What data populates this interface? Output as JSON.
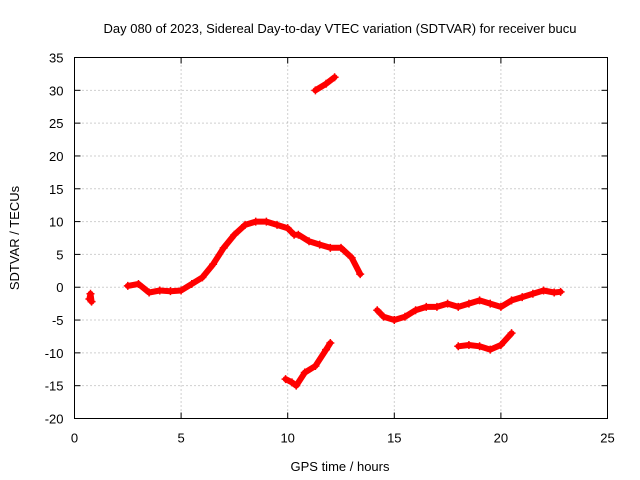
{
  "chart_data": {
    "type": "scatter",
    "title": "Day 080 of 2023, Sidereal Day-to-day VTEC variation (SDTVAR) for receiver bucu",
    "xlabel": "GPS time / hours",
    "ylabel": "SDTVAR / TECUs",
    "xlim": [
      0,
      25
    ],
    "ylim": [
      -20,
      35
    ],
    "xticks": [
      0,
      5,
      10,
      15,
      20,
      25
    ],
    "yticks": [
      -20,
      -15,
      -10,
      -5,
      0,
      5,
      10,
      15,
      20,
      25,
      30,
      35
    ],
    "grid": true,
    "legend": "none",
    "series": [
      {
        "name": "SDTVAR",
        "color": "#ff0000",
        "segments": [
          [
            [
              0.7,
              -1.8
            ],
            [
              0.75,
              -1.0
            ],
            [
              0.8,
              -2.2
            ]
          ],
          [
            [
              2.5,
              0.2
            ],
            [
              3.0,
              0.5
            ],
            [
              3.5,
              -0.8
            ],
            [
              4.0,
              -0.5
            ],
            [
              4.5,
              -0.6
            ],
            [
              5.0,
              -0.5
            ],
            [
              5.5,
              0.5
            ],
            [
              6.0,
              1.5
            ],
            [
              6.5,
              3.5
            ],
            [
              7.0,
              6.0
            ],
            [
              7.5,
              8.0
            ],
            [
              8.0,
              9.5
            ],
            [
              8.5,
              10.0
            ],
            [
              9.0,
              10.0
            ],
            [
              9.5,
              9.5
            ],
            [
              10.0,
              9.0
            ],
            [
              10.3,
              8.0
            ],
            [
              10.5,
              8.0
            ],
            [
              11.0,
              7.0
            ],
            [
              11.5,
              6.5
            ],
            [
              12.0,
              6.0
            ],
            [
              12.5,
              6.0
            ],
            [
              13.0,
              4.5
            ],
            [
              13.4,
              2.0
            ]
          ],
          [
            [
              11.3,
              30.0
            ],
            [
              11.8,
              31.0
            ],
            [
              12.2,
              32.0
            ]
          ],
          [
            [
              9.9,
              -14.0
            ],
            [
              10.2,
              -14.5
            ],
            [
              10.4,
              -15.0
            ],
            [
              10.8,
              -13.0
            ],
            [
              11.3,
              -12.0
            ],
            [
              11.8,
              -9.5
            ],
            [
              12.0,
              -8.5
            ]
          ],
          [
            [
              14.2,
              -3.5
            ],
            [
              14.5,
              -4.5
            ],
            [
              15.0,
              -5.0
            ],
            [
              15.5,
              -4.5
            ],
            [
              16.0,
              -3.5
            ],
            [
              16.5,
              -3.0
            ],
            [
              17.0,
              -3.0
            ],
            [
              17.5,
              -2.5
            ],
            [
              18.0,
              -3.0
            ],
            [
              18.5,
              -2.5
            ],
            [
              19.0,
              -2.0
            ],
            [
              19.5,
              -2.5
            ],
            [
              20.0,
              -3.0
            ],
            [
              20.5,
              -2.0
            ],
            [
              21.0,
              -1.5
            ],
            [
              21.5,
              -1.0
            ],
            [
              22.0,
              -0.5
            ],
            [
              22.5,
              -0.8
            ],
            [
              22.8,
              -0.7
            ]
          ],
          [
            [
              18.0,
              -9.0
            ],
            [
              18.5,
              -8.8
            ],
            [
              19.0,
              -9.0
            ],
            [
              19.5,
              -9.5
            ],
            [
              20.0,
              -8.8
            ],
            [
              20.5,
              -7.0
            ]
          ]
        ]
      }
    ]
  }
}
